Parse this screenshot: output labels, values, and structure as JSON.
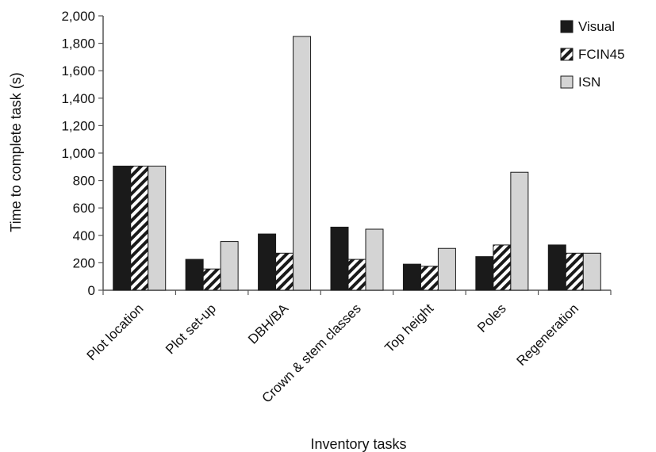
{
  "chart_data": {
    "type": "bar",
    "xlabel": "Inventory tasks",
    "ylabel": "Time to complete task (s)",
    "ylim": [
      0,
      2000
    ],
    "yticks": [
      "0",
      "200",
      "400",
      "600",
      "800",
      "1,000",
      "1,200",
      "1,400",
      "1,600",
      "1,800",
      "2,000"
    ],
    "categories": [
      "Plot location",
      "Plot set-up",
      "DBH/BA",
      "Crown & stem classes",
      "Top height",
      "Poles",
      "Regeneration"
    ],
    "series": [
      {
        "name": "Visual",
        "values": [
          905,
          225,
          410,
          460,
          190,
          245,
          330
        ],
        "color": "#1a1a1a",
        "pattern": "solid"
      },
      {
        "name": "FCIN45",
        "values": [
          905,
          155,
          270,
          225,
          175,
          330,
          270
        ],
        "color": "#1a1a1a",
        "pattern": "hatch"
      },
      {
        "name": "ISN",
        "values": [
          905,
          355,
          1850,
          445,
          305,
          860,
          270
        ],
        "color": "#d4d4d4",
        "pattern": "solid"
      }
    ],
    "legend_position": "top-right",
    "grid": false
  }
}
